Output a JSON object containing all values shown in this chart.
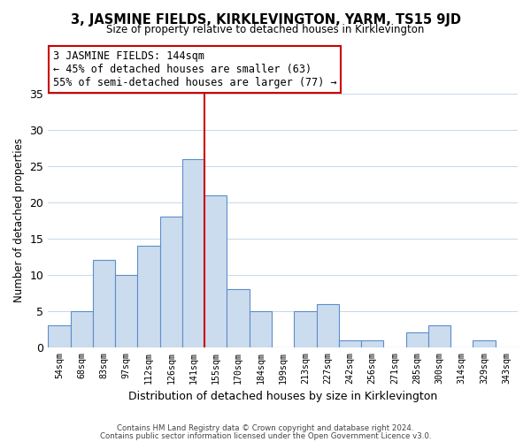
{
  "title": "3, JASMINE FIELDS, KIRKLEVINGTON, YARM, TS15 9JD",
  "subtitle": "Size of property relative to detached houses in Kirklevington",
  "xlabel": "Distribution of detached houses by size in Kirklevington",
  "ylabel": "Number of detached properties",
  "bin_labels": [
    "54sqm",
    "68sqm",
    "83sqm",
    "97sqm",
    "112sqm",
    "126sqm",
    "141sqm",
    "155sqm",
    "170sqm",
    "184sqm",
    "199sqm",
    "213sqm",
    "227sqm",
    "242sqm",
    "256sqm",
    "271sqm",
    "285sqm",
    "300sqm",
    "314sqm",
    "329sqm",
    "343sqm"
  ],
  "bar_heights": [
    3,
    5,
    12,
    10,
    14,
    18,
    26,
    21,
    8,
    5,
    0,
    5,
    6,
    1,
    1,
    0,
    2,
    3,
    0,
    1,
    0
  ],
  "bar_color": "#ccdcef",
  "bar_edge_color": "#5b8fc9",
  "vline_index": 7,
  "annotation_title": "3 JASMINE FIELDS: 144sqm",
  "annotation_line1": "← 45% of detached houses are smaller (63)",
  "annotation_line2": "55% of semi-detached houses are larger (77) →",
  "annotation_box_color": "#ffffff",
  "annotation_box_edge": "#cc0000",
  "vline_color": "#cc0000",
  "ylim": [
    0,
    35
  ],
  "yticks": [
    0,
    5,
    10,
    15,
    20,
    25,
    30,
    35
  ],
  "footer1": "Contains HM Land Registry data © Crown copyright and database right 2024.",
  "footer2": "Contains public sector information licensed under the Open Government Licence v3.0.",
  "bg_color": "#ffffff",
  "grid_color": "#c8d8e8"
}
